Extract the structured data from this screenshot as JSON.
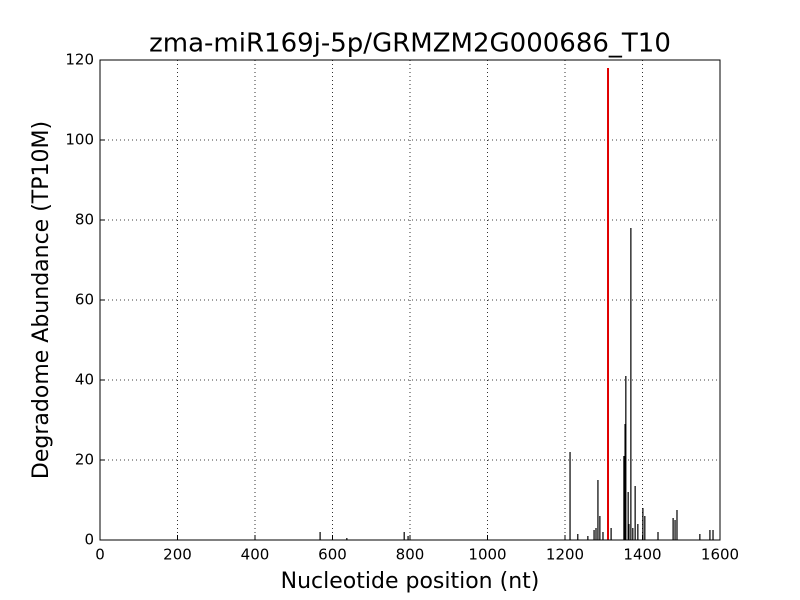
{
  "chart_data": {
    "type": "stem",
    "title": "zma-miR169j-5p/GRMZM2G000686_T10",
    "x_label": "Nucleotide position (nt)",
    "y_label": "Degradome Abundance (TP10M)",
    "xlim": [
      0,
      1600
    ],
    "xticks": [
      0,
      200,
      400,
      600,
      800,
      1000,
      1200,
      1400,
      1600
    ],
    "ylim": [
      0,
      120
    ],
    "yticks": [
      0,
      20,
      40,
      60,
      80,
      100,
      120
    ],
    "grid": true,
    "series": [
      {
        "color": "#000000",
        "x": [
          568,
          637,
          785,
          795,
          1213,
          1233,
          1259,
          1275,
          1280,
          1285,
          1290,
          1298,
          1319,
          1352,
          1355,
          1357,
          1363,
          1365,
          1370,
          1375,
          1381,
          1388,
          1401,
          1406,
          1440,
          1479,
          1484,
          1489,
          1548,
          1574,
          1582
        ],
        "values": [
          2,
          0.5,
          2,
          1,
          22,
          1.5,
          1,
          2.5,
          3,
          15,
          6,
          2,
          3,
          21,
          29,
          41,
          12,
          4,
          78,
          3,
          13.5,
          4,
          8,
          6,
          2,
          5.5,
          5,
          7.5,
          1.5,
          2.5,
          2.5
        ]
      },
      {
        "color": "#e00000",
        "x": [
          1311
        ],
        "values": [
          118
        ]
      }
    ]
  }
}
